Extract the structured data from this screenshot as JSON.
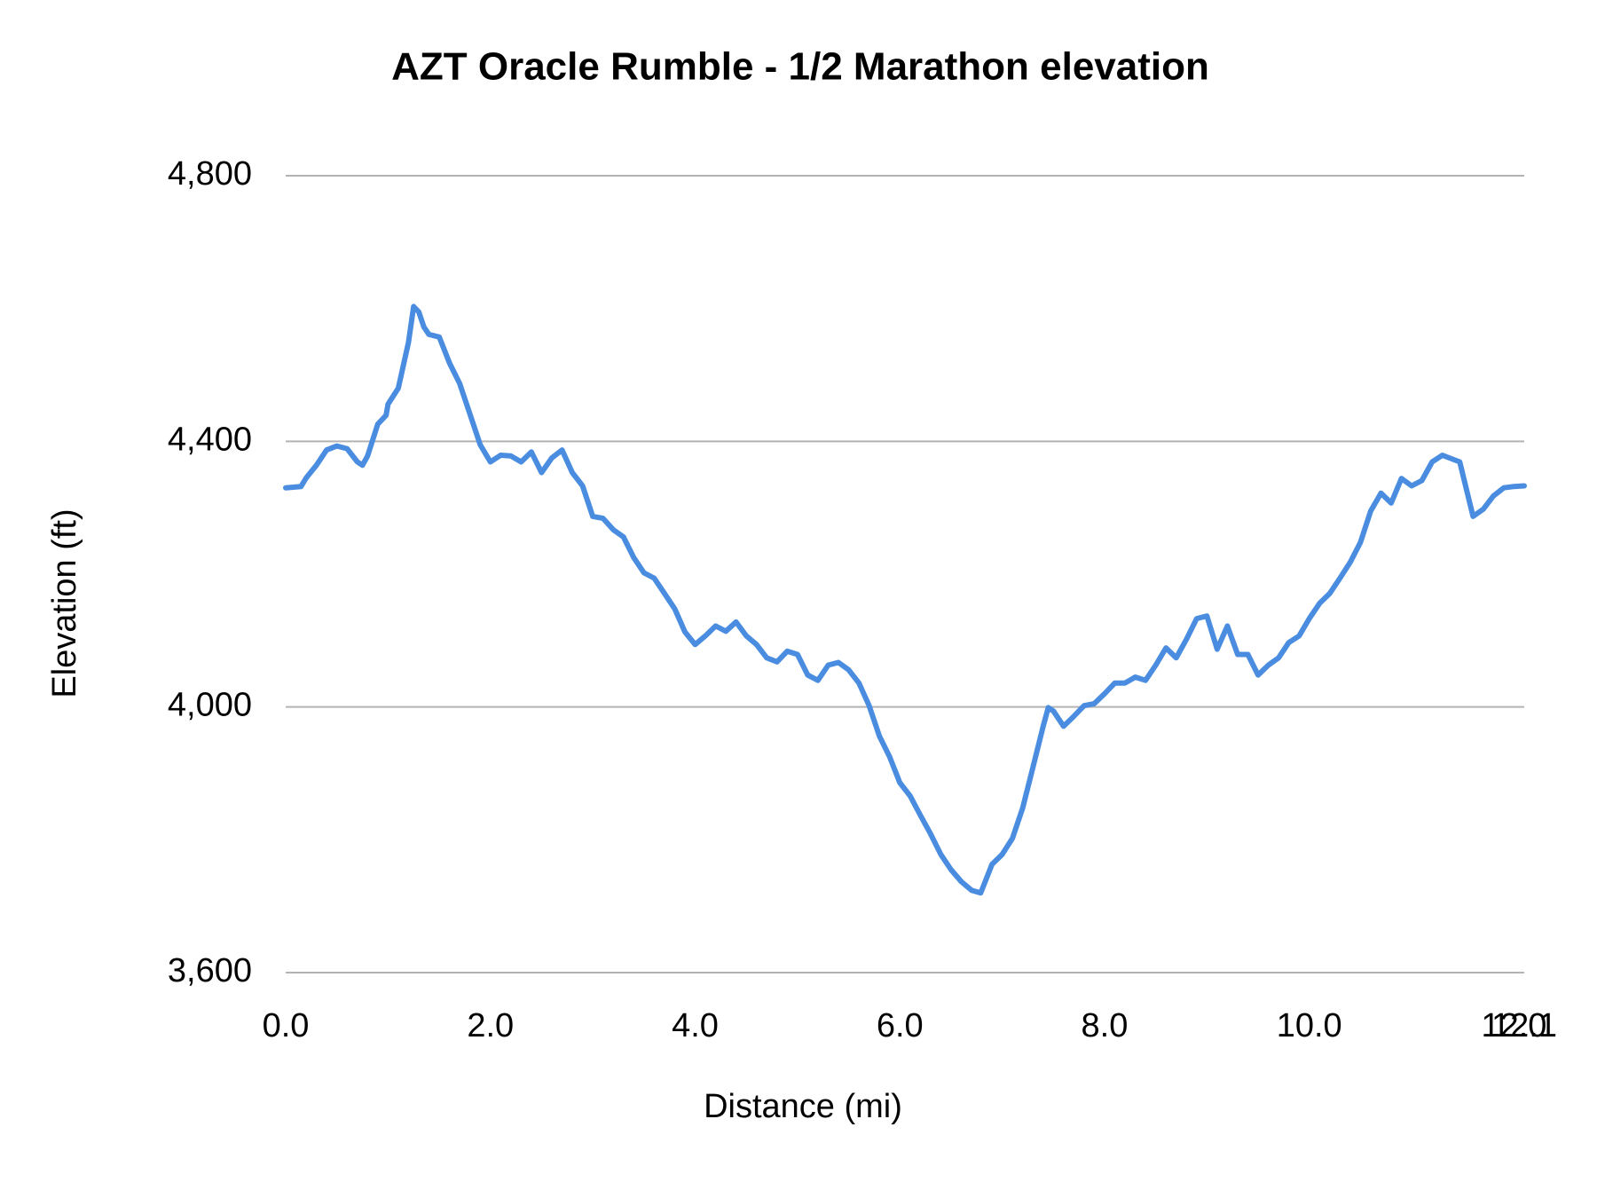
{
  "chart_data": {
    "type": "line",
    "title": "AZT Oracle Rumble - 1/2 Marathon elevation",
    "xlabel": "Distance (mi)",
    "ylabel": "Elevation (ft)",
    "color": "#4a8de0",
    "grid": true,
    "x": [
      0.0,
      0.15,
      0.2,
      0.3,
      0.4,
      0.5,
      0.6,
      0.7,
      0.75,
      0.8,
      0.9,
      0.98,
      1.0,
      1.1,
      1.2,
      1.25,
      1.3,
      1.35,
      1.4,
      1.5,
      1.6,
      1.7,
      1.8,
      1.9,
      2.0,
      2.1,
      2.2,
      2.3,
      2.4,
      2.5,
      2.6,
      2.7,
      2.8,
      2.9,
      3.0,
      3.1,
      3.2,
      3.3,
      3.4,
      3.5,
      3.6,
      3.7,
      3.8,
      3.9,
      4.0,
      4.1,
      4.2,
      4.3,
      4.4,
      4.5,
      4.6,
      4.7,
      4.8,
      4.9,
      5.0,
      5.1,
      5.2,
      5.3,
      5.4,
      5.5,
      5.6,
      5.7,
      5.8,
      5.9,
      6.0,
      6.1,
      6.2,
      6.3,
      6.4,
      6.5,
      6.6,
      6.7,
      6.79,
      6.9,
      7.0,
      7.1,
      7.2,
      7.3,
      7.4,
      7.45,
      7.5,
      7.6,
      7.7,
      7.8,
      7.9,
      8.0,
      8.1,
      8.2,
      8.3,
      8.4,
      8.5,
      8.6,
      8.7,
      8.8,
      8.9,
      9.0,
      9.1,
      9.2,
      9.3,
      9.4,
      9.5,
      9.6,
      9.7,
      9.8,
      9.9,
      10.0,
      10.1,
      10.2,
      10.3,
      10.4,
      10.5,
      10.6,
      10.7,
      10.8,
      10.9,
      11.0,
      11.1,
      11.2,
      11.3,
      11.47,
      11.6,
      11.7,
      11.8,
      11.9,
      12.0,
      12.1
    ],
    "values": [
      4330,
      4332,
      4345,
      4364,
      4387,
      4393,
      4389,
      4369,
      4364,
      4378,
      4426,
      4439,
      4456,
      4480,
      4549,
      4603,
      4595,
      4572,
      4561,
      4557,
      4518,
      4487,
      4441,
      4395,
      4369,
      4379,
      4378,
      4369,
      4384,
      4353,
      4375,
      4387,
      4353,
      4333,
      4287,
      4284,
      4267,
      4256,
      4225,
      4202,
      4194,
      4171,
      4148,
      4113,
      4094,
      4107,
      4122,
      4114,
      4128,
      4107,
      4094,
      4074,
      4068,
      4084,
      4079,
      4048,
      4040,
      4063,
      4067,
      4056,
      4036,
      4002,
      3956,
      3925,
      3886,
      3866,
      3837,
      3809,
      3778,
      3755,
      3737,
      3724,
      3720,
      3763,
      3778,
      3802,
      3848,
      3909,
      3971,
      3999,
      3994,
      3971,
      3986,
      4002,
      4005,
      4020,
      4036,
      4036,
      4045,
      4040,
      4063,
      4089,
      4074,
      4102,
      4133,
      4137,
      4087,
      4122,
      4079,
      4079,
      4048,
      4063,
      4074,
      4097,
      4107,
      4133,
      4156,
      4171,
      4194,
      4218,
      4248,
      4295,
      4322,
      4307,
      4344,
      4333,
      4341,
      4369,
      4379,
      4369,
      4287,
      4298,
      4318,
      4330,
      4332,
      4333
    ],
    "xlim": [
      0,
      12.1
    ],
    "xticks": [
      {
        "value": 0,
        "label": "0.0"
      },
      {
        "value": 2,
        "label": "2.0"
      },
      {
        "value": 4,
        "label": "4.0"
      },
      {
        "value": 6,
        "label": "6.0"
      },
      {
        "value": 8,
        "label": "8.0"
      },
      {
        "value": 10,
        "label": "10.0"
      },
      {
        "value": 12,
        "label": "12.0"
      },
      {
        "value": 12.1,
        "label": "12.1"
      }
    ],
    "ylim": [
      3600,
      4800
    ],
    "yticks": [
      {
        "value": 3600,
        "label": "3,600"
      },
      {
        "value": 4000,
        "label": "4,000"
      },
      {
        "value": 4400,
        "label": "4,400"
      },
      {
        "value": 4800,
        "label": "4,800"
      }
    ]
  }
}
